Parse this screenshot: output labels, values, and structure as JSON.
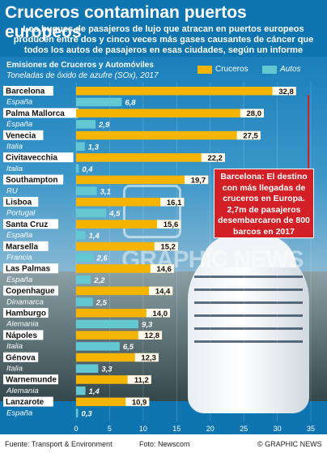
{
  "header": {
    "title": "Cruceros contaminan puertos europeos",
    "subtitle": "Los buques de pasajeros de lujo que atracan en puertos europeos producen entre dos y cinco veces más gases causantes de cáncer que todos los autos de pasajeros en esas ciudades, según un informe"
  },
  "chart_header": {
    "title": "Emisiones de Cruceros y Automóviles",
    "unit": "Toneladas de óxido de azufre (SOx), 2017"
  },
  "legend": {
    "cruise_label": "Cruceros",
    "cars_label": "Autos"
  },
  "colors": {
    "background": "#0f75b0",
    "cruise": "#f5b400",
    "cars": "#64c8d2",
    "callout": "#d32027",
    "label_bg": "#ffffff"
  },
  "callout": {
    "text": "Barcelona: El destino con más llegadas de cruceros en Europa. 2,7m de pasajeros desembarcaron de 800 barcos en 2017"
  },
  "watermark": {
    "text": "GRAPHIC NEWS"
  },
  "footer": {
    "source": "Fuente: Transport & Environment",
    "photo": "Foto: Newscom",
    "copyright": "© GRAPHIC NEWS"
  },
  "chart_data": {
    "type": "bar",
    "orientation": "horizontal",
    "xlim": [
      0,
      35
    ],
    "x_ticks": [
      "0",
      "5",
      "10",
      "15",
      "20",
      "25",
      "30",
      "35"
    ],
    "categories": [
      {
        "city": "Barcelona",
        "country": "España"
      },
      {
        "city": "Palma Mallorca",
        "country": "España"
      },
      {
        "city": "Venecia",
        "country": "Italia"
      },
      {
        "city": "Civitavecchia",
        "country": "Italia"
      },
      {
        "city": "Southampton",
        "country": "RU"
      },
      {
        "city": "Lisboa",
        "country": "Portugal"
      },
      {
        "city": "Santa Cruz",
        "country": "España"
      },
      {
        "city": "Marsella",
        "country": "Francia"
      },
      {
        "city": "Las Palmas",
        "country": "España"
      },
      {
        "city": "Copenhague",
        "country": "Dinamarca"
      },
      {
        "city": "Hamburgo",
        "country": "Alemania"
      },
      {
        "city": "Nápoles",
        "country": "Italia"
      },
      {
        "city": "Génova",
        "country": "Italia"
      },
      {
        "city": "Warnemunde",
        "country": "Alemania"
      },
      {
        "city": "Lanzarote",
        "country": "España"
      }
    ],
    "series": [
      {
        "name": "Cruceros",
        "values": [
          32.8,
          28.0,
          27.5,
          22.2,
          19.7,
          16.1,
          15.6,
          15.2,
          14.6,
          14.4,
          14.0,
          12.8,
          12.3,
          11.2,
          10.9
        ],
        "labels": [
          "32,8",
          "28,0",
          "27,5",
          "22,2",
          "19,7",
          "16,1",
          "15,6",
          "15,2",
          "14,6",
          "14,4",
          "14,0",
          "12,8",
          "12,3",
          "11,2",
          "10,9"
        ]
      },
      {
        "name": "Autos",
        "values": [
          6.8,
          2.9,
          1.3,
          0.4,
          3.1,
          4.5,
          1.4,
          2.6,
          2.2,
          2.5,
          9.3,
          6.5,
          3.3,
          1.4,
          0.3
        ],
        "labels": [
          "6,8",
          "2,9",
          "1,3",
          "0,4",
          "3,1",
          "4,5",
          "1,4",
          "2,6",
          "2,2",
          "2,5",
          "9,3",
          "6,5",
          "3,3",
          "1,4",
          "0,3"
        ]
      }
    ]
  }
}
